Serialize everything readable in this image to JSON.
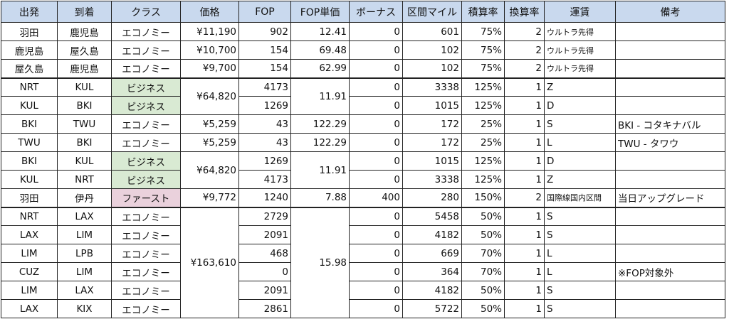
{
  "headers": [
    "出発",
    "到着",
    "クラス",
    "価格",
    "FOP",
    "FOP単価",
    "ボーナス",
    "区間マイル",
    "積算率",
    "換算率",
    "運賃",
    "備考"
  ],
  "rows": [
    {
      "dep": "羽田",
      "arr": "鹿児島",
      "cls": "エコノミー",
      "price": "¥11,190",
      "fop": "902",
      "unit": "12.41",
      "bonus": "0",
      "miles": "601",
      "rate": "75%",
      "conv": "2",
      "fare": "ウルトラ先得",
      "note": ""
    },
    {
      "dep": "鹿児島",
      "arr": "屋久島",
      "cls": "エコノミー",
      "price": "¥10,700",
      "fop": "154",
      "unit": "69.48",
      "bonus": "0",
      "miles": "102",
      "rate": "75%",
      "conv": "2",
      "fare": "ウルトラ先得",
      "note": ""
    },
    {
      "dep": "屋久島",
      "arr": "鹿児島",
      "cls": "エコノミー",
      "price": "¥9,700",
      "fop": "154",
      "unit": "62.99",
      "bonus": "0",
      "miles": "102",
      "rate": "75%",
      "conv": "2",
      "fare": "ウルトラ先得",
      "note": ""
    },
    {
      "dep": "NRT",
      "arr": "KUL",
      "cls": "ビジネス",
      "price": "¥64,820",
      "fop": "4173",
      "unit": "11.91",
      "bonus": "0",
      "miles": "3338",
      "rate": "125%",
      "conv": "1",
      "fare": "Z",
      "note": ""
    },
    {
      "dep": "KUL",
      "arr": "BKI",
      "cls": "ビジネス",
      "price": "",
      "fop": "1269",
      "unit": "",
      "bonus": "0",
      "miles": "1015",
      "rate": "125%",
      "conv": "1",
      "fare": "D",
      "note": ""
    },
    {
      "dep": "BKI",
      "arr": "TWU",
      "cls": "エコノミー",
      "price": "¥5,259",
      "fop": "43",
      "unit": "122.29",
      "bonus": "0",
      "miles": "172",
      "rate": "25%",
      "conv": "1",
      "fare": "S",
      "note": "BKI - コタキナバル"
    },
    {
      "dep": "TWU",
      "arr": "BKI",
      "cls": "エコノミー",
      "price": "¥5,259",
      "fop": "43",
      "unit": "122.29",
      "bonus": "0",
      "miles": "172",
      "rate": "25%",
      "conv": "1",
      "fare": "L",
      "note": "TWU - タワウ"
    },
    {
      "dep": "BKI",
      "arr": "KUL",
      "cls": "ビジネス",
      "price": "¥64,820",
      "fop": "1269",
      "unit": "11.91",
      "bonus": "0",
      "miles": "1015",
      "rate": "125%",
      "conv": "1",
      "fare": "D",
      "note": ""
    },
    {
      "dep": "KUL",
      "arr": "NRT",
      "cls": "ビジネス",
      "price": "",
      "fop": "4173",
      "unit": "",
      "bonus": "0",
      "miles": "3338",
      "rate": "125%",
      "conv": "1",
      "fare": "Z",
      "note": ""
    },
    {
      "dep": "羽田",
      "arr": "伊丹",
      "cls": "ファースト",
      "price": "¥9,772",
      "fop": "1240",
      "unit": "7.88",
      "bonus": "400",
      "miles": "280",
      "rate": "150%",
      "conv": "2",
      "fare": "国際線国内区間",
      "note": "当日アップグレード"
    },
    {
      "dep": "NRT",
      "arr": "LAX",
      "cls": "エコノミー",
      "price": "¥163,610",
      "fop": "2729",
      "unit": "15.98",
      "bonus": "0",
      "miles": "5458",
      "rate": "50%",
      "conv": "1",
      "fare": "S",
      "note": ""
    },
    {
      "dep": "LAX",
      "arr": "LIM",
      "cls": "エコノミー",
      "price": "",
      "fop": "2091",
      "unit": "",
      "bonus": "0",
      "miles": "4182",
      "rate": "50%",
      "conv": "1",
      "fare": "S",
      "note": ""
    },
    {
      "dep": "LIM",
      "arr": "LPB",
      "cls": "エコノミー",
      "price": "",
      "fop": "468",
      "unit": "",
      "bonus": "0",
      "miles": "669",
      "rate": "70%",
      "conv": "1",
      "fare": "L",
      "note": ""
    },
    {
      "dep": "CUZ",
      "arr": "LIM",
      "cls": "エコノミー",
      "price": "",
      "fop": "0",
      "unit": "",
      "bonus": "0",
      "miles": "364",
      "rate": "70%",
      "conv": "1",
      "fare": "L",
      "note": "※FOP対象外"
    },
    {
      "dep": "LIM",
      "arr": "LAX",
      "cls": "エコノミー",
      "price": "",
      "fop": "2091",
      "unit": "",
      "bonus": "0",
      "miles": "4182",
      "rate": "50%",
      "conv": "1",
      "fare": "S",
      "note": ""
    },
    {
      "dep": "LAX",
      "arr": "KIX",
      "cls": "エコノミー",
      "price": "",
      "fop": "2861",
      "unit": "",
      "bonus": "0",
      "miles": "5722",
      "rate": "50%",
      "conv": "1",
      "fare": "S",
      "note": ""
    }
  ]
}
